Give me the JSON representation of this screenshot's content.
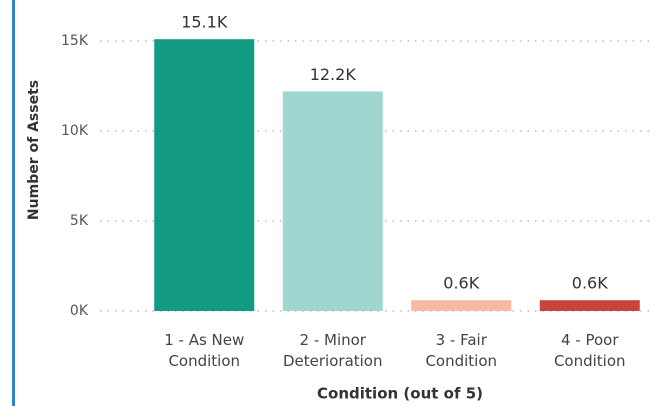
{
  "chart_data": {
    "type": "bar",
    "y_axis_label": "Number of Assets",
    "x_axis_label": "Condition (out of 5)",
    "categories": [
      "1 - As New Condition",
      "2 - Minor Deterioration",
      "3 - Fair Condition",
      "4 - Poor Condition"
    ],
    "values": [
      15100,
      12200,
      600,
      600
    ],
    "value_labels": [
      "15.1K",
      "12.2K",
      "0.6K",
      "0.6K"
    ],
    "colors": [
      "#129a82",
      "#9fd6cf",
      "#f6b9a4",
      "#c8453f"
    ],
    "ylim": [
      0,
      16500
    ],
    "yticks": [
      {
        "value": 0,
        "label": "0K"
      },
      {
        "value": 5000,
        "label": "5K"
      },
      {
        "value": 10000,
        "label": "10K"
      },
      {
        "value": 15000,
        "label": "15K"
      }
    ],
    "grid": true
  }
}
